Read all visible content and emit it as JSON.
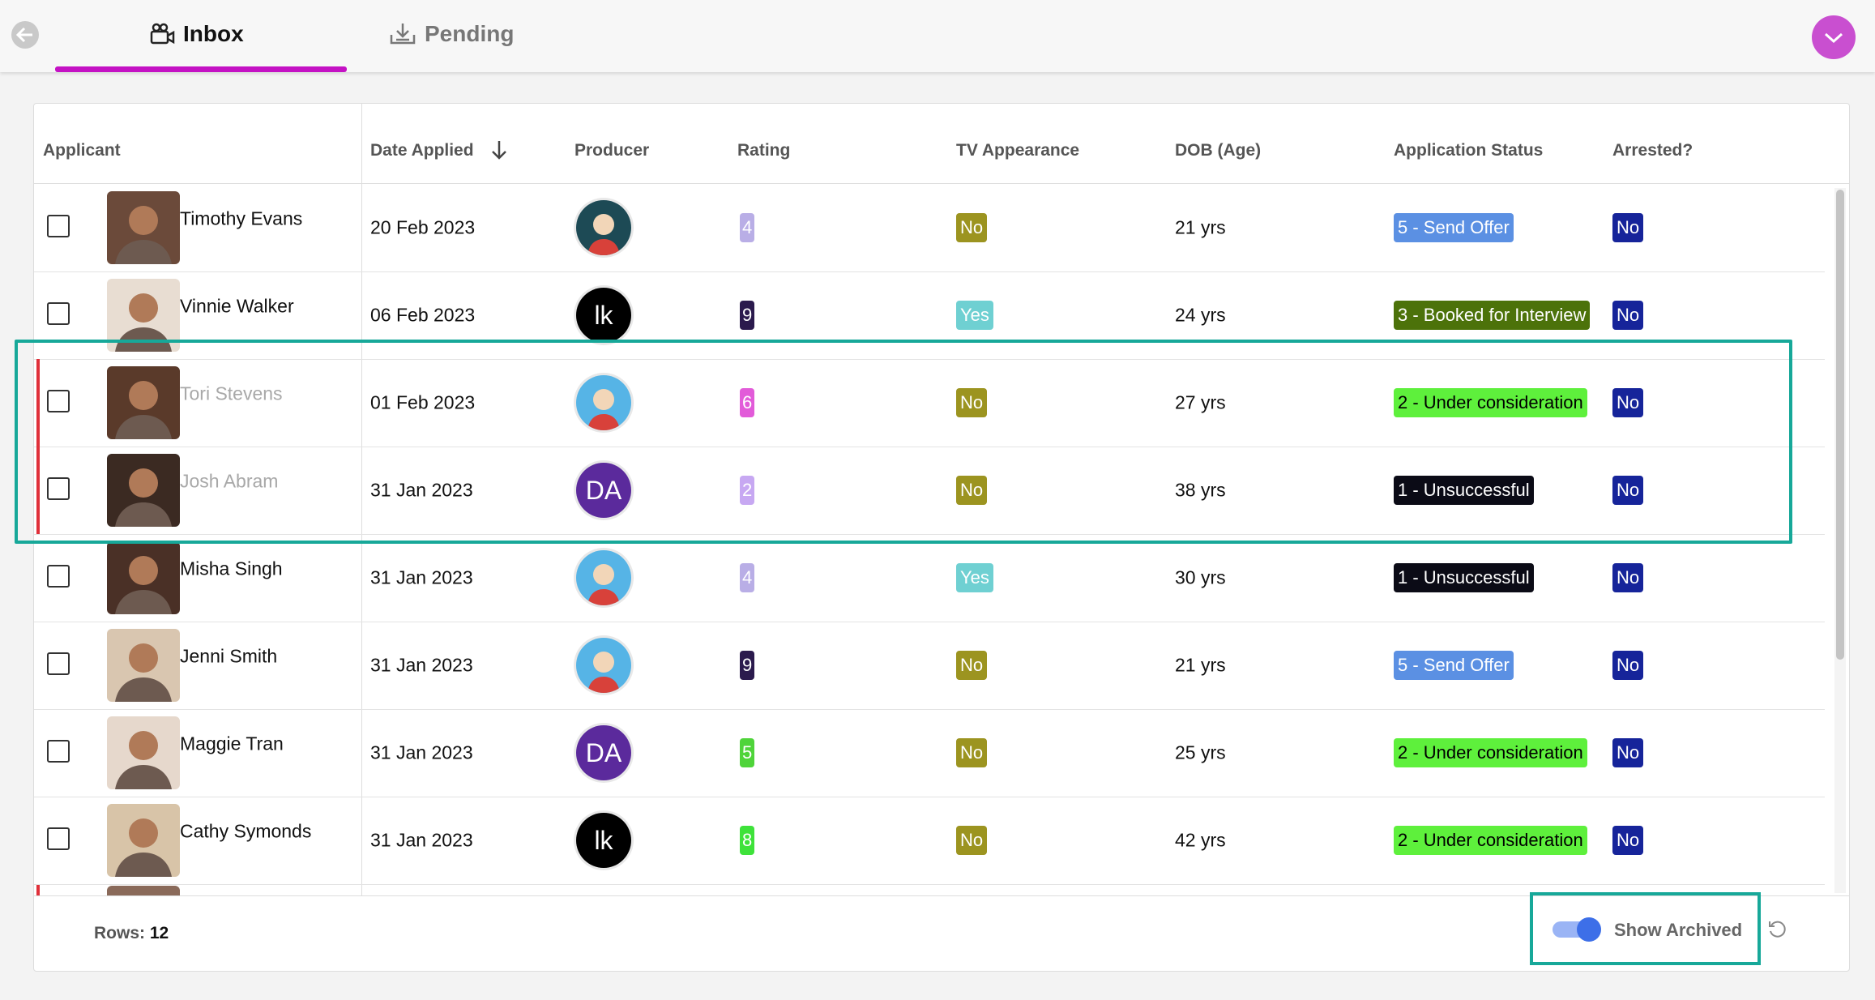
{
  "tabs": [
    "Inbox",
    "Pending"
  ],
  "table": {
    "columns": [
      "Applicant",
      "Date Applied",
      "Producer",
      "Rating",
      "TV Appearance",
      "DOB (Age)",
      "Application Status",
      "Arrested?"
    ],
    "rows": [
      {
        "name": "Timothy Evans",
        "date": "20 Feb 2023",
        "producer": {
          "color": "#1d4a55"
        },
        "rating": {
          "value": 4,
          "color": "#b9aee6"
        },
        "tv": {
          "text": "No",
          "color": "#9c9420"
        },
        "age": "21 yrs",
        "status": {
          "text": "5 - Send Offer",
          "color": "#5b90e3"
        },
        "arrested": {
          "text": "No",
          "color": "#16249a"
        },
        "archived": false
      },
      {
        "name": "Vinnie Walker",
        "date": "06 Feb 2023",
        "producer": {
          "initials": "lk",
          "color": "#000000"
        },
        "rating": {
          "value": 9,
          "color": "#2b1a4d"
        },
        "tv": {
          "text": "Yes",
          "color": "#6fd0d2"
        },
        "age": "24 yrs",
        "status": {
          "text": "3 - Booked for Interview",
          "color": "#4c720a"
        },
        "arrested": {
          "text": "No",
          "color": "#16249a"
        },
        "archived": false
      },
      {
        "name": "Tori Stevens",
        "date": "01 Feb 2023",
        "producer": {
          "color": "#56b4e6"
        },
        "rating": {
          "value": 6,
          "color": "#e25bd9"
        },
        "tv": {
          "text": "No",
          "color": "#9c9420"
        },
        "age": "27 yrs",
        "status": {
          "text": "2 - Under consideration",
          "color": "#5ef03c"
        },
        "arrested": {
          "text": "No",
          "color": "#16249a"
        },
        "archived": true
      },
      {
        "name": "Josh Abram",
        "date": "31 Jan 2023",
        "producer": {
          "initials": "DA",
          "color": "#5b2a9c"
        },
        "rating": {
          "value": 2,
          "color": "#c7a8f2"
        },
        "tv": {
          "text": "No",
          "color": "#9c9420"
        },
        "age": "38 yrs",
        "status": {
          "text": "1 - Unsuccessful",
          "color": "#0b0b16"
        },
        "arrested": {
          "text": "No",
          "color": "#16249a"
        },
        "archived": true
      },
      {
        "name": "Misha Singh",
        "date": "31 Jan 2023",
        "producer": {
          "color": "#56b4e6"
        },
        "rating": {
          "value": 4,
          "color": "#b9aee6"
        },
        "tv": {
          "text": "Yes",
          "color": "#6fd0d2"
        },
        "age": "30 yrs",
        "status": {
          "text": "1 - Unsuccessful",
          "color": "#0b0b16"
        },
        "arrested": {
          "text": "No",
          "color": "#16249a"
        },
        "archived": false
      },
      {
        "name": "Jenni Smith",
        "date": "31 Jan 2023",
        "producer": {
          "color": "#56b4e6"
        },
        "rating": {
          "value": 9,
          "color": "#2b1a4d"
        },
        "tv": {
          "text": "No",
          "color": "#9c9420"
        },
        "age": "21 yrs",
        "status": {
          "text": "5 - Send Offer",
          "color": "#5b90e3"
        },
        "arrested": {
          "text": "No",
          "color": "#16249a"
        },
        "archived": false
      },
      {
        "name": "Maggie Tran",
        "date": "31 Jan 2023",
        "producer": {
          "initials": "DA",
          "color": "#5b2a9c"
        },
        "rating": {
          "value": 5,
          "color": "#4fd43a"
        },
        "tv": {
          "text": "No",
          "color": "#9c9420"
        },
        "age": "25 yrs",
        "status": {
          "text": "2 - Under consideration",
          "color": "#5ef03c"
        },
        "arrested": {
          "text": "No",
          "color": "#16249a"
        },
        "archived": false
      },
      {
        "name": "Cathy Symonds",
        "date": "31 Jan 2023",
        "producer": {
          "initials": "lk",
          "color": "#000000"
        },
        "rating": {
          "value": 8,
          "color": "#3ee23a"
        },
        "tv": {
          "text": "No",
          "color": "#9c9420"
        },
        "age": "42 yrs",
        "status": {
          "text": "2 - Under consideration",
          "color": "#5ef03c"
        },
        "arrested": {
          "text": "No",
          "color": "#16249a"
        },
        "archived": false
      }
    ]
  },
  "footer": {
    "rows_label": "Rows:",
    "rows_count": 12,
    "toggle_label": "Show Archived",
    "toggle_on": true
  }
}
